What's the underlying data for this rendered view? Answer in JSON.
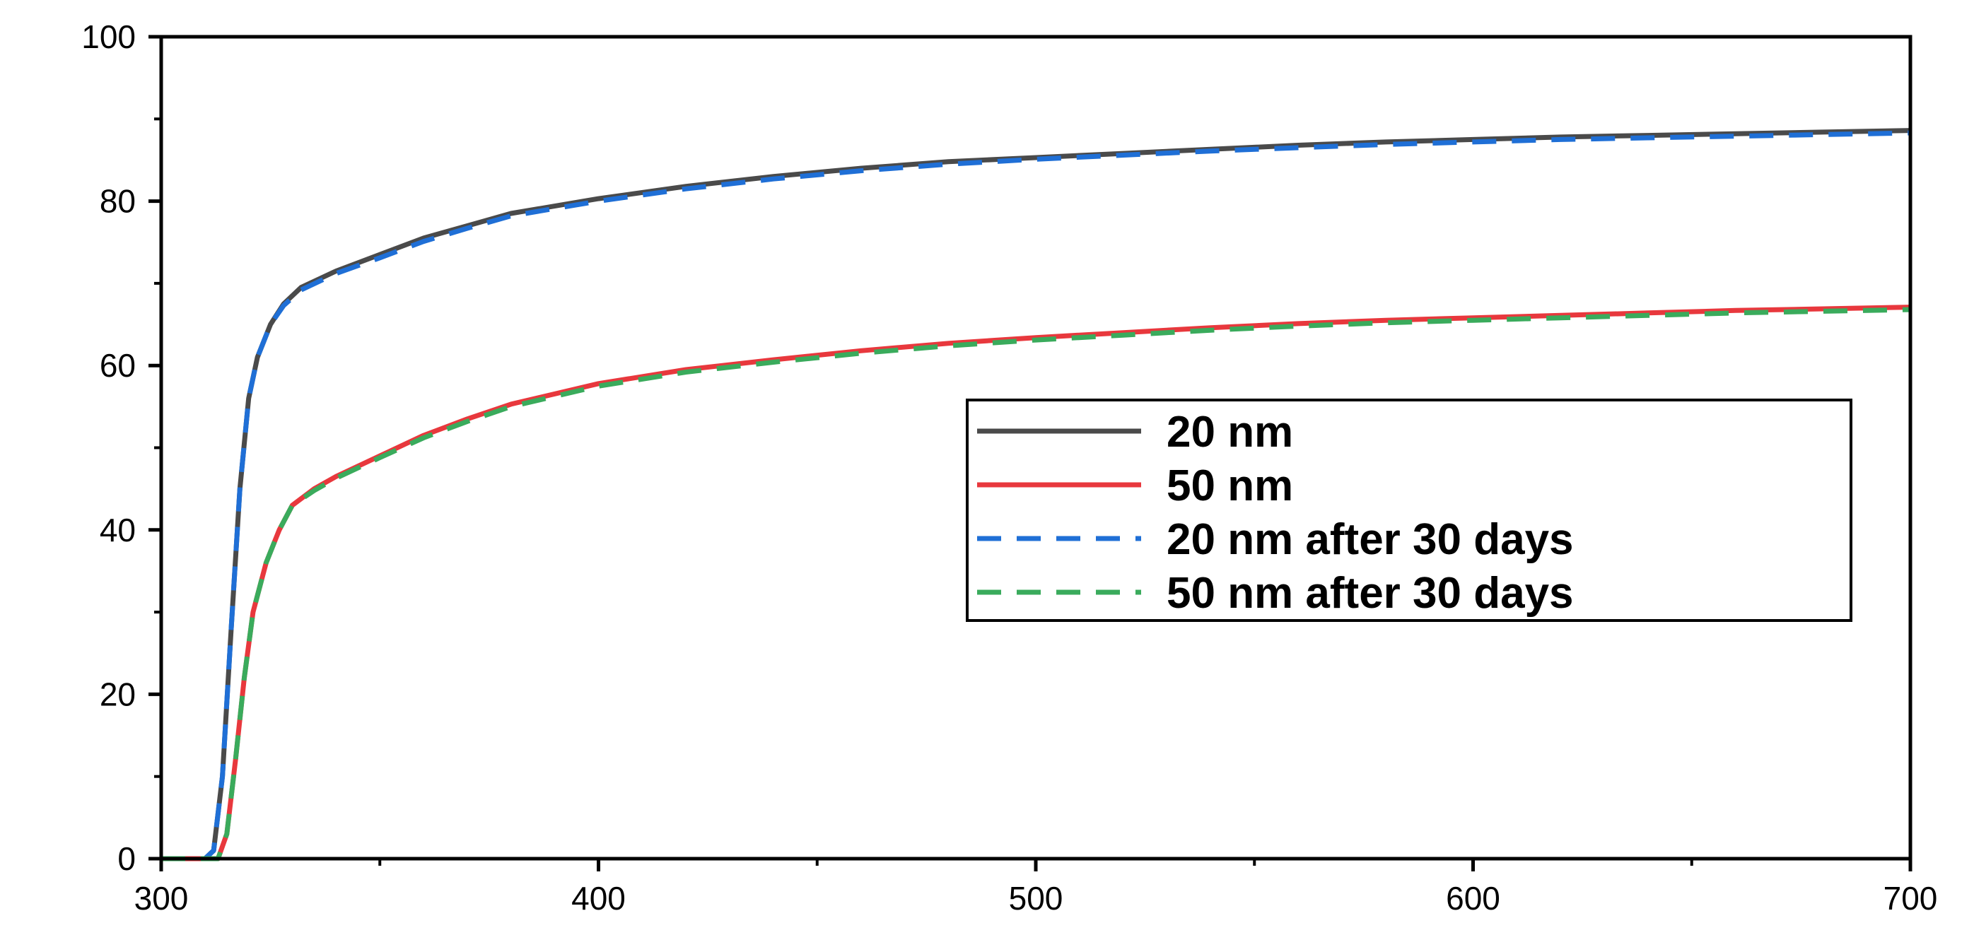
{
  "chart_data": {
    "type": "line",
    "title": "",
    "xlabel": "",
    "ylabel": "",
    "xlim": [
      300,
      700
    ],
    "ylim": [
      0,
      100
    ],
    "x_ticks": [
      300,
      400,
      500,
      600,
      700
    ],
    "y_ticks": [
      0,
      20,
      40,
      60,
      80,
      100
    ],
    "x_tick_labels": [
      "300",
      "400",
      "500",
      "600",
      "700"
    ],
    "y_tick_labels": [
      "0",
      "20",
      "40",
      "60",
      "80",
      "100"
    ],
    "grid": false,
    "legend_position": "center-right",
    "series": [
      {
        "name": "20 nm",
        "color": "#4a4a4a",
        "style": "solid",
        "points": [
          [
            300,
            0
          ],
          [
            310,
            0
          ],
          [
            312,
            1
          ],
          [
            314,
            10
          ],
          [
            316,
            28
          ],
          [
            318,
            45
          ],
          [
            320,
            56
          ],
          [
            322,
            61
          ],
          [
            325,
            65
          ],
          [
            328,
            67.5
          ],
          [
            332,
            69.5
          ],
          [
            340,
            71.5
          ],
          [
            350,
            73.5
          ],
          [
            360,
            75.5
          ],
          [
            370,
            77
          ],
          [
            380,
            78.5
          ],
          [
            400,
            80.3
          ],
          [
            420,
            81.8
          ],
          [
            440,
            83
          ],
          [
            460,
            84
          ],
          [
            480,
            84.8
          ],
          [
            500,
            85.3
          ],
          [
            520,
            85.8
          ],
          [
            540,
            86.3
          ],
          [
            560,
            86.8
          ],
          [
            580,
            87.2
          ],
          [
            600,
            87.5
          ],
          [
            620,
            87.8
          ],
          [
            640,
            88
          ],
          [
            660,
            88.2
          ],
          [
            680,
            88.4
          ],
          [
            700,
            88.6
          ]
        ]
      },
      {
        "name": "50 nm",
        "color": "#e8383d",
        "style": "solid",
        "points": [
          [
            300,
            0
          ],
          [
            313,
            0
          ],
          [
            315,
            3
          ],
          [
            317,
            12
          ],
          [
            319,
            22
          ],
          [
            321,
            30
          ],
          [
            324,
            36
          ],
          [
            327,
            40
          ],
          [
            330,
            43
          ],
          [
            335,
            45
          ],
          [
            340,
            46.5
          ],
          [
            350,
            49
          ],
          [
            360,
            51.5
          ],
          [
            370,
            53.5
          ],
          [
            380,
            55.3
          ],
          [
            400,
            57.8
          ],
          [
            420,
            59.5
          ],
          [
            440,
            60.7
          ],
          [
            460,
            61.8
          ],
          [
            480,
            62.7
          ],
          [
            500,
            63.4
          ],
          [
            520,
            64
          ],
          [
            540,
            64.6
          ],
          [
            560,
            65.1
          ],
          [
            580,
            65.5
          ],
          [
            600,
            65.8
          ],
          [
            620,
            66.1
          ],
          [
            640,
            66.4
          ],
          [
            660,
            66.7
          ],
          [
            680,
            66.9
          ],
          [
            700,
            67.1
          ]
        ]
      },
      {
        "name": "20 nm after 30 days",
        "color": "#1f6fd6",
        "style": "dashed",
        "points": [
          [
            300,
            0
          ],
          [
            310,
            0
          ],
          [
            312,
            1
          ],
          [
            314,
            10
          ],
          [
            316,
            28
          ],
          [
            318,
            45
          ],
          [
            320,
            56
          ],
          [
            322,
            61
          ],
          [
            325,
            65
          ],
          [
            328,
            67.3
          ],
          [
            332,
            69.2
          ],
          [
            340,
            71.2
          ],
          [
            350,
            73.1
          ],
          [
            360,
            75.1
          ],
          [
            370,
            76.7
          ],
          [
            380,
            78.2
          ],
          [
            400,
            80
          ],
          [
            420,
            81.5
          ],
          [
            440,
            82.7
          ],
          [
            460,
            83.7
          ],
          [
            480,
            84.5
          ],
          [
            500,
            85.1
          ],
          [
            520,
            85.6
          ],
          [
            540,
            86.1
          ],
          [
            560,
            86.5
          ],
          [
            580,
            86.9
          ],
          [
            600,
            87.2
          ],
          [
            620,
            87.5
          ],
          [
            640,
            87.7
          ],
          [
            660,
            87.9
          ],
          [
            680,
            88.1
          ],
          [
            700,
            88.3
          ]
        ]
      },
      {
        "name": "50 nm after 30 days",
        "color": "#3aab5c",
        "style": "dashed",
        "points": [
          [
            300,
            0
          ],
          [
            313,
            0
          ],
          [
            315,
            3
          ],
          [
            317,
            12
          ],
          [
            319,
            22
          ],
          [
            321,
            30
          ],
          [
            324,
            36
          ],
          [
            327,
            40
          ],
          [
            330,
            43
          ],
          [
            335,
            44.8
          ],
          [
            340,
            46.3
          ],
          [
            350,
            48.8
          ],
          [
            360,
            51.2
          ],
          [
            370,
            53.2
          ],
          [
            380,
            55
          ],
          [
            400,
            57.5
          ],
          [
            420,
            59.2
          ],
          [
            440,
            60.4
          ],
          [
            460,
            61.5
          ],
          [
            480,
            62.4
          ],
          [
            500,
            63.1
          ],
          [
            520,
            63.7
          ],
          [
            540,
            64.3
          ],
          [
            560,
            64.8
          ],
          [
            580,
            65.2
          ],
          [
            600,
            65.5
          ],
          [
            620,
            65.8
          ],
          [
            640,
            66.1
          ],
          [
            660,
            66.4
          ],
          [
            680,
            66.6
          ],
          [
            700,
            66.8
          ]
        ]
      }
    ]
  }
}
